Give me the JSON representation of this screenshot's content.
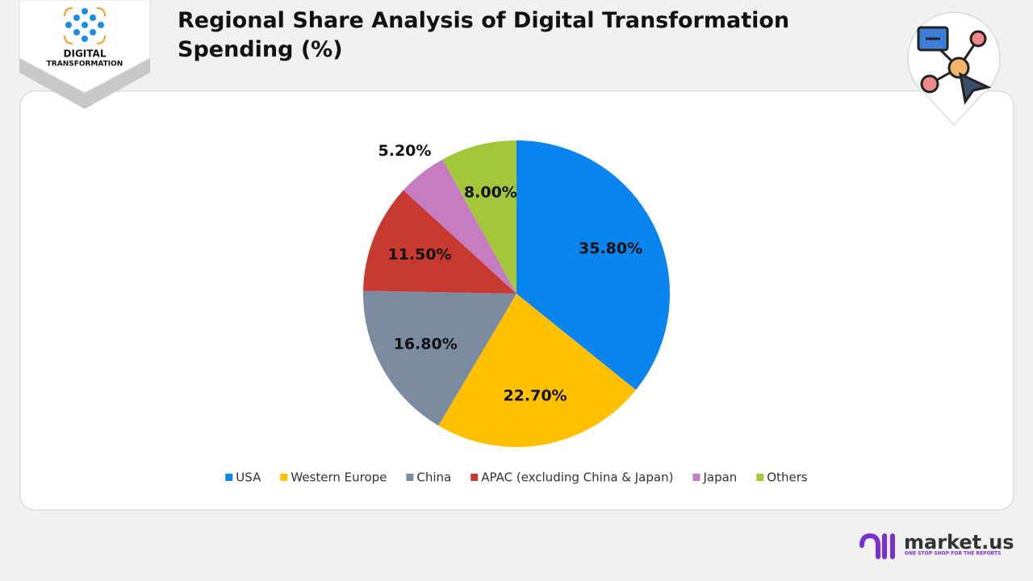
{
  "header": {
    "logo_line1": "DIGITAL",
    "logo_line2": "TRANSFORMATION"
  },
  "chart_data": {
    "type": "pie",
    "title": "Regional Share Analysis of Digital Transformation Spending (%)",
    "categories": [
      "USA",
      "Western Europe",
      "China",
      "APAC (excluding China & Japan)",
      "Japan",
      "Others"
    ],
    "values": [
      35.8,
      22.7,
      16.8,
      11.5,
      5.2,
      8.0
    ],
    "value_labels": [
      "35.80%",
      "22.70%",
      "16.80%",
      "11.50%",
      "5.20%",
      "8.00%"
    ],
    "colors": [
      "#0a84ef",
      "#ffc000",
      "#7b8ca1",
      "#c8392f",
      "#c67cc0",
      "#a3c63b"
    ],
    "legend": "bottom"
  },
  "footer": {
    "brand": "market.us",
    "tagline": "ONE STOP SHOP FOR THE REPORTS"
  }
}
